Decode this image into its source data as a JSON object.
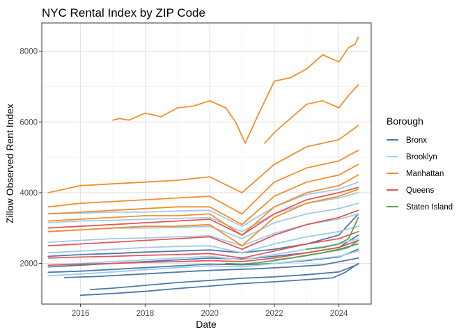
{
  "chart_data": {
    "type": "line",
    "title": "NYC Rental Index by ZIP Code",
    "xlabel": "Date",
    "ylabel": "Zillow Observed Rent Index",
    "xlim": [
      2014.8,
      2025.0
    ],
    "ylim": [
      850,
      8800
    ],
    "x_ticks": [
      2016,
      2018,
      2020,
      2022,
      2024
    ],
    "y_ticks": [
      2000,
      4000,
      6000,
      8000
    ],
    "grid": true,
    "legend_title": "Borough",
    "legend_position": "right",
    "legend": [
      {
        "name": "Bronx",
        "color": "#4e79a7"
      },
      {
        "name": "Brooklyn",
        "color": "#a0cbe8"
      },
      {
        "name": "Manhattan",
        "color": "#f28e2b"
      },
      {
        "name": "Queens",
        "color": "#e15759"
      },
      {
        "name": "Staten Island",
        "color": "#59a14f"
      }
    ],
    "series": [
      {
        "borough": "Bronx",
        "x": [
          2016.0,
          2017.0,
          2018.0,
          2019.0,
          2020.0,
          2021.0,
          2022.0,
          2023.0,
          2023.8,
          2024.2,
          2024.6
        ],
        "y": [
          1100,
          1150,
          1210,
          1290,
          1360,
          1430,
          1480,
          1540,
          1590,
          1750,
          2000
        ]
      },
      {
        "borough": "Bronx",
        "x": [
          2016.3,
          2017.0,
          2018.0,
          2019.0,
          2020.0,
          2021.0,
          2022.0,
          2023.0,
          2024.0,
          2024.6
        ],
        "y": [
          1260,
          1300,
          1380,
          1460,
          1520,
          1580,
          1620,
          1680,
          1760,
          1980
        ]
      },
      {
        "borough": "Bronx",
        "x": [
          2015.5,
          2016.5,
          2017.5,
          2018.5,
          2019.5,
          2020.5,
          2021.5,
          2022.5,
          2023.5,
          2024.6
        ],
        "y": [
          1600,
          1630,
          1680,
          1730,
          1780,
          1820,
          1850,
          1900,
          1960,
          2150
        ]
      },
      {
        "borough": "Bronx",
        "x": [
          2015.0,
          2016.0,
          2017.0,
          2018.0,
          2019.0,
          2020.0,
          2021.0,
          2022.0,
          2023.0,
          2024.0,
          2024.6
        ],
        "y": [
          1750,
          1780,
          1830,
          1880,
          1930,
          1980,
          1960,
          2000,
          2080,
          2180,
          2400
        ]
      },
      {
        "borough": "Bronx",
        "x": [
          2015.0,
          2016.0,
          2017.0,
          2018.0,
          2019.0,
          2020.0,
          2021.0,
          2022.0,
          2023.0,
          2024.0,
          2024.6
        ],
        "y": [
          1900,
          1950,
          2000,
          2050,
          2100,
          2150,
          2120,
          2200,
          2300,
          2450,
          2800
        ]
      },
      {
        "borough": "Bronx",
        "x": [
          2015.0,
          2016.0,
          2017.0,
          2018.0,
          2019.0,
          2020.0,
          2021.0,
          2022.0,
          2023.0,
          2024.0,
          2024.6
        ],
        "y": [
          2200,
          2250,
          2280,
          2320,
          2350,
          2380,
          2300,
          2400,
          2550,
          2800,
          3400
        ]
      },
      {
        "borough": "Brooklyn",
        "x": [
          2015.0,
          2016.0,
          2017.0,
          2018.0,
          2019.0,
          2020.0,
          2021.0,
          2022.0,
          2023.0,
          2024.0,
          2024.6
        ],
        "y": [
          1650,
          1700,
          1760,
          1820,
          1880,
          1930,
          1900,
          2000,
          2100,
          2200,
          2350
        ]
      },
      {
        "borough": "Brooklyn",
        "x": [
          2015.0,
          2016.0,
          2017.0,
          2018.0,
          2019.0,
          2020.0,
          2021.0,
          2022.0,
          2023.0,
          2024.0,
          2024.6
        ],
        "y": [
          1950,
          2000,
          2050,
          2100,
          2150,
          2200,
          2100,
          2250,
          2400,
          2550,
          2700
        ]
      },
      {
        "borough": "Brooklyn",
        "x": [
          2015.0,
          2016.0,
          2017.0,
          2018.0,
          2019.0,
          2020.0,
          2021.0,
          2022.0,
          2023.0,
          2024.0,
          2024.6
        ],
        "y": [
          2300,
          2350,
          2400,
          2450,
          2480,
          2500,
          2300,
          2550,
          2750,
          2900,
          3050
        ]
      },
      {
        "borough": "Brooklyn",
        "x": [
          2015.0,
          2016.0,
          2017.0,
          2018.0,
          2019.0,
          2020.0,
          2021.0,
          2022.0,
          2023.0,
          2024.0,
          2024.6
        ],
        "y": [
          2600,
          2650,
          2700,
          2720,
          2750,
          2780,
          2500,
          2850,
          3100,
          3250,
          3400
        ]
      },
      {
        "borough": "Brooklyn",
        "x": [
          2015.0,
          2016.0,
          2017.0,
          2018.0,
          2019.0,
          2020.0,
          2021.0,
          2022.0,
          2023.0,
          2024.0,
          2024.6
        ],
        "y": [
          2900,
          2950,
          3000,
          3000,
          3020,
          3050,
          2700,
          3150,
          3400,
          3550,
          3700
        ]
      },
      {
        "borough": "Brooklyn",
        "x": [
          2015.0,
          2016.0,
          2017.0,
          2018.0,
          2019.0,
          2020.0,
          2021.0,
          2022.0,
          2023.0,
          2024.0,
          2024.6
        ],
        "y": [
          3150,
          3200,
          3220,
          3250,
          3270,
          3300,
          2900,
          3400,
          3700,
          3850,
          4000
        ]
      },
      {
        "borough": "Brooklyn",
        "x": [
          2015.0,
          2016.0,
          2017.0,
          2018.0,
          2019.0,
          2020.0,
          2021.0,
          2022.0,
          2023.0,
          2024.0,
          2024.6
        ],
        "y": [
          3400,
          3420,
          3450,
          3450,
          3480,
          3500,
          3050,
          3600,
          3950,
          4100,
          4300
        ]
      },
      {
        "borough": "Manhattan",
        "x": [
          2017.0,
          2017.2,
          2017.5,
          2018.0,
          2018.5,
          2019.0,
          2019.5,
          2020.0,
          2020.5,
          2020.8,
          2021.1,
          2021.5,
          2022.0,
          2022.5,
          2023.0,
          2023.5,
          2024.0,
          2024.3,
          2024.5,
          2024.6
        ],
        "y": [
          6050,
          6100,
          6050,
          6250,
          6150,
          6400,
          6450,
          6600,
          6400,
          6000,
          5400,
          6200,
          7150,
          7250,
          7500,
          7900,
          7700,
          8100,
          8200,
          8400
        ]
      },
      {
        "borough": "Manhattan",
        "x": [
          2021.7,
          2022.0,
          2022.5,
          2023.0,
          2023.5,
          2024.0,
          2024.3,
          2024.6
        ],
        "y": [
          5400,
          5700,
          6100,
          6500,
          6600,
          6400,
          6750,
          7050
        ]
      },
      {
        "borough": "Manhattan",
        "x": [
          2015.0,
          2016.0,
          2017.0,
          2018.0,
          2019.0,
          2020.0,
          2021.0,
          2022.0,
          2023.0,
          2024.0,
          2024.6
        ],
        "y": [
          4000,
          4200,
          4250,
          4300,
          4350,
          4450,
          4000,
          4800,
          5300,
          5500,
          5900
        ]
      },
      {
        "borough": "Manhattan",
        "x": [
          2015.0,
          2016.0,
          2017.0,
          2018.0,
          2019.0,
          2020.0,
          2021.0,
          2022.0,
          2023.0,
          2024.0,
          2024.6
        ],
        "y": [
          3600,
          3700,
          3750,
          3800,
          3850,
          3900,
          3400,
          4300,
          4700,
          4900,
          5200
        ]
      },
      {
        "borough": "Manhattan",
        "x": [
          2015.0,
          2016.0,
          2017.0,
          2018.0,
          2019.0,
          2020.0,
          2021.0,
          2022.0,
          2023.0,
          2024.0,
          2024.6
        ],
        "y": [
          3400,
          3450,
          3500,
          3550,
          3600,
          3600,
          3100,
          3900,
          4300,
          4500,
          4800
        ]
      },
      {
        "borough": "Manhattan",
        "x": [
          2015.0,
          2016.0,
          2017.0,
          2018.0,
          2019.0,
          2020.0,
          2021.0,
          2022.0,
          2023.0,
          2024.0,
          2024.6
        ],
        "y": [
          3200,
          3250,
          3300,
          3350,
          3350,
          3400,
          2800,
          3600,
          4000,
          4200,
          4500
        ]
      },
      {
        "borough": "Manhattan",
        "x": [
          2015.0,
          2016.0,
          2017.0,
          2018.0,
          2019.0,
          2020.0,
          2021.0,
          2022.0,
          2023.0,
          2024.0,
          2024.6
        ],
        "y": [
          2900,
          2950,
          3000,
          3050,
          3050,
          3100,
          2500,
          3300,
          3700,
          3900,
          4100
        ]
      },
      {
        "borough": "Queens",
        "x": [
          2015.0,
          2016.0,
          2017.0,
          2018.0,
          2019.0,
          2020.0,
          2021.0,
          2022.0,
          2023.0,
          2024.0,
          2024.6
        ],
        "y": [
          1950,
          1980,
          2000,
          2030,
          2050,
          2080,
          2050,
          2150,
          2300,
          2450,
          2650
        ]
      },
      {
        "borough": "Queens",
        "x": [
          2015.0,
          2016.0,
          2017.0,
          2018.0,
          2019.0,
          2020.0,
          2021.0,
          2022.0,
          2023.0,
          2024.0,
          2024.6
        ],
        "y": [
          2150,
          2180,
          2200,
          2230,
          2250,
          2280,
          2150,
          2350,
          2550,
          2700,
          2900
        ]
      },
      {
        "borough": "Queens",
        "x": [
          2015.0,
          2016.0,
          2017.0,
          2018.0,
          2019.0,
          2020.0,
          2021.0,
          2022.0,
          2023.0,
          2024.0,
          2024.6
        ],
        "y": [
          2500,
          2550,
          2600,
          2650,
          2700,
          2750,
          2400,
          2800,
          3100,
          3300,
          3500
        ]
      },
      {
        "borough": "Queens",
        "x": [
          2015.0,
          2016.0,
          2017.0,
          2018.0,
          2019.0,
          2020.0,
          2021.0,
          2022.0,
          2023.0,
          2024.0,
          2024.6
        ],
        "y": [
          3000,
          3050,
          3100,
          3150,
          3200,
          3250,
          2800,
          3400,
          3800,
          4000,
          4150
        ]
      },
      {
        "borough": "Staten Island",
        "x": [
          2020.5,
          2021.0,
          2021.5,
          2022.0,
          2022.5,
          2023.0,
          2023.5,
          2024.0,
          2024.6
        ],
        "y": [
          2000,
          1980,
          2020,
          2080,
          2150,
          2230,
          2300,
          2400,
          2550
        ]
      },
      {
        "borough": "Staten Island",
        "x": [
          2022.0,
          2022.5,
          2023.0,
          2023.5,
          2024.0,
          2024.3,
          2024.6
        ],
        "y": [
          2100,
          2150,
          2220,
          2300,
          2380,
          2450,
          2650
        ]
      },
      {
        "borough": "Staten Island",
        "x": [
          2023.0,
          2023.5,
          2024.0,
          2024.3,
          2024.6
        ],
        "y": [
          2400,
          2450,
          2550,
          2700,
          3300
        ]
      }
    ]
  }
}
